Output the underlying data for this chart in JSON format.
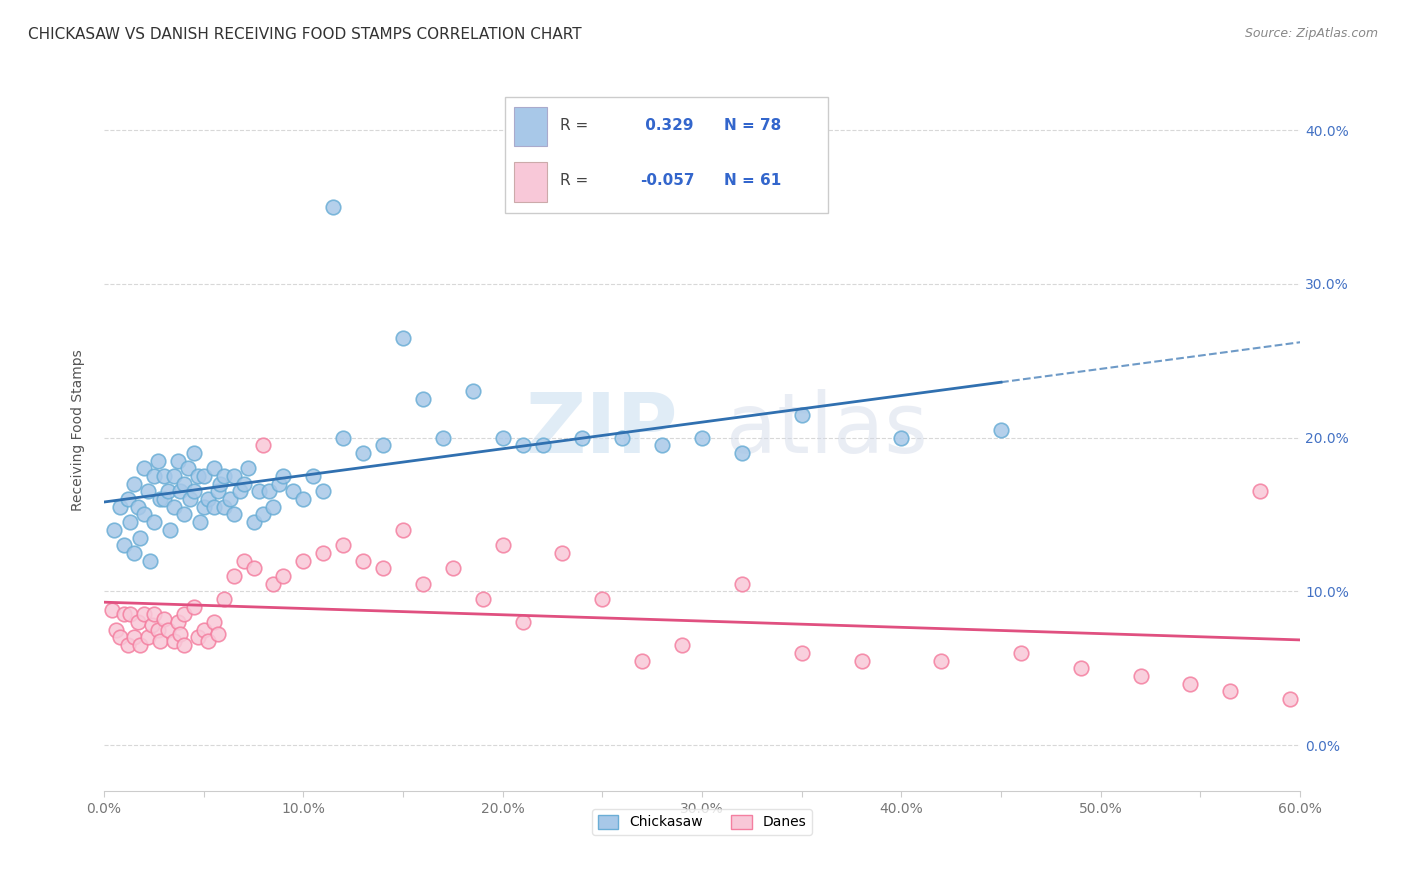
{
  "title": "CHICKASAW VS DANISH RECEIVING FOOD STAMPS CORRELATION CHART",
  "source": "Source: ZipAtlas.com",
  "ylabel": "Receiving Food Stamps",
  "xlim": [
    0.0,
    0.6
  ],
  "ylim": [
    -0.03,
    0.44
  ],
  "ytick_labels_right": [
    "0.0%",
    "10.0%",
    "20.0%",
    "30.0%",
    "40.0%"
  ],
  "ytick_vals": [
    0.0,
    0.1,
    0.2,
    0.3,
    0.4
  ],
  "xtick_labels": [
    "0.0%",
    "",
    "10.0%",
    "",
    "20.0%",
    "",
    "30.0%",
    "",
    "40.0%",
    "",
    "50.0%",
    "",
    "60.0%"
  ],
  "xtick_vals": [
    0.0,
    0.05,
    0.1,
    0.15,
    0.2,
    0.25,
    0.3,
    0.35,
    0.4,
    0.45,
    0.5,
    0.55,
    0.6
  ],
  "chickasaw_color": "#a8c8e8",
  "chickasaw_edge": "#6baed6",
  "danes_color": "#f8c8d8",
  "danes_edge": "#f47fa0",
  "chickasaw_R": 0.329,
  "chickasaw_N": 78,
  "danes_R": -0.057,
  "danes_N": 61,
  "trend_chickasaw_color": "#3070b0",
  "trend_danes_color": "#e05080",
  "background_color": "#ffffff",
  "grid_color": "#d8d8d8",
  "watermark_zip": "ZIP",
  "watermark_atlas": "atlas",
  "chickasaw_x": [
    0.005,
    0.008,
    0.01,
    0.012,
    0.013,
    0.015,
    0.015,
    0.017,
    0.018,
    0.02,
    0.02,
    0.022,
    0.023,
    0.025,
    0.025,
    0.027,
    0.028,
    0.03,
    0.03,
    0.032,
    0.033,
    0.035,
    0.035,
    0.037,
    0.038,
    0.04,
    0.04,
    0.042,
    0.043,
    0.045,
    0.045,
    0.047,
    0.048,
    0.05,
    0.05,
    0.052,
    0.055,
    0.055,
    0.057,
    0.058,
    0.06,
    0.06,
    0.063,
    0.065,
    0.065,
    0.068,
    0.07,
    0.072,
    0.075,
    0.078,
    0.08,
    0.083,
    0.085,
    0.088,
    0.09,
    0.095,
    0.1,
    0.105,
    0.11,
    0.115,
    0.12,
    0.13,
    0.14,
    0.15,
    0.16,
    0.17,
    0.185,
    0.2,
    0.21,
    0.22,
    0.24,
    0.26,
    0.28,
    0.3,
    0.32,
    0.35,
    0.4,
    0.45
  ],
  "chickasaw_y": [
    0.14,
    0.155,
    0.13,
    0.16,
    0.145,
    0.17,
    0.125,
    0.155,
    0.135,
    0.18,
    0.15,
    0.165,
    0.12,
    0.175,
    0.145,
    0.185,
    0.16,
    0.16,
    0.175,
    0.165,
    0.14,
    0.175,
    0.155,
    0.185,
    0.165,
    0.17,
    0.15,
    0.18,
    0.16,
    0.19,
    0.165,
    0.175,
    0.145,
    0.155,
    0.175,
    0.16,
    0.155,
    0.18,
    0.165,
    0.17,
    0.155,
    0.175,
    0.16,
    0.15,
    0.175,
    0.165,
    0.17,
    0.18,
    0.145,
    0.165,
    0.15,
    0.165,
    0.155,
    0.17,
    0.175,
    0.165,
    0.16,
    0.175,
    0.165,
    0.35,
    0.2,
    0.19,
    0.195,
    0.265,
    0.225,
    0.2,
    0.23,
    0.2,
    0.195,
    0.195,
    0.2,
    0.2,
    0.195,
    0.2,
    0.19,
    0.215,
    0.2,
    0.205
  ],
  "danes_x": [
    0.004,
    0.006,
    0.008,
    0.01,
    0.012,
    0.013,
    0.015,
    0.017,
    0.018,
    0.02,
    0.022,
    0.024,
    0.025,
    0.027,
    0.028,
    0.03,
    0.032,
    0.035,
    0.037,
    0.038,
    0.04,
    0.04,
    0.045,
    0.047,
    0.05,
    0.052,
    0.055,
    0.057,
    0.06,
    0.065,
    0.07,
    0.075,
    0.08,
    0.085,
    0.09,
    0.1,
    0.11,
    0.12,
    0.13,
    0.14,
    0.15,
    0.16,
    0.175,
    0.19,
    0.2,
    0.21,
    0.23,
    0.25,
    0.27,
    0.29,
    0.32,
    0.35,
    0.38,
    0.42,
    0.46,
    0.49,
    0.52,
    0.545,
    0.565,
    0.58,
    0.595
  ],
  "danes_y": [
    0.088,
    0.075,
    0.07,
    0.085,
    0.065,
    0.085,
    0.07,
    0.08,
    0.065,
    0.085,
    0.07,
    0.078,
    0.085,
    0.075,
    0.068,
    0.082,
    0.075,
    0.068,
    0.08,
    0.072,
    0.085,
    0.065,
    0.09,
    0.07,
    0.075,
    0.068,
    0.08,
    0.072,
    0.095,
    0.11,
    0.12,
    0.115,
    0.195,
    0.105,
    0.11,
    0.12,
    0.125,
    0.13,
    0.12,
    0.115,
    0.14,
    0.105,
    0.115,
    0.095,
    0.13,
    0.08,
    0.125,
    0.095,
    0.055,
    0.065,
    0.105,
    0.06,
    0.055,
    0.055,
    0.06,
    0.05,
    0.045,
    0.04,
    0.035,
    0.165,
    0.03
  ]
}
